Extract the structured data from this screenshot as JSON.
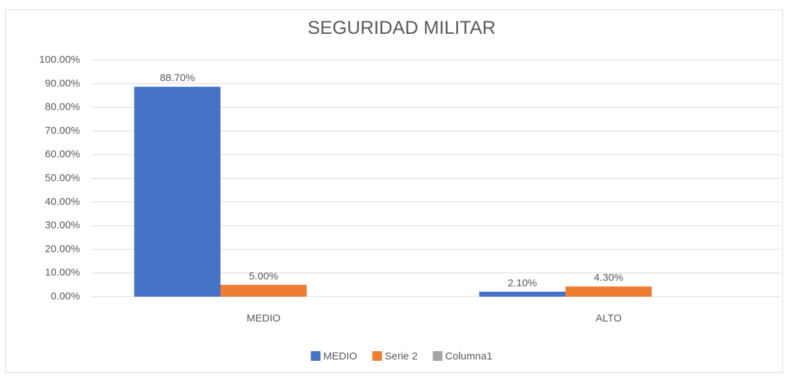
{
  "chart_data": {
    "type": "bar",
    "title": "SEGURIDAD MILITAR",
    "categories": [
      "MEDIO",
      "ALTO"
    ],
    "series": [
      {
        "name": "MEDIO",
        "color": "#4472c4",
        "values": [
          88.7,
          2.1
        ],
        "value_labels": [
          "88.70%",
          "2.10%"
        ]
      },
      {
        "name": "Serie 2",
        "color": "#ed7d31",
        "values": [
          5.0,
          4.3
        ],
        "value_labels": [
          "5.00%",
          "4.30%"
        ]
      },
      {
        "name": "Columna1",
        "color": "#a5a5a5",
        "values": [
          null,
          null
        ]
      }
    ],
    "ylim": [
      0,
      100
    ],
    "yticks": [
      {
        "value": 0,
        "label": "0.00%"
      },
      {
        "value": 10,
        "label": "10.00%"
      },
      {
        "value": 20,
        "label": "20.00%"
      },
      {
        "value": 30,
        "label": "30.00%"
      },
      {
        "value": 40,
        "label": "40.00%"
      },
      {
        "value": 50,
        "label": "50.00%"
      },
      {
        "value": 60,
        "label": "60.00%"
      },
      {
        "value": 70,
        "label": "70.00%"
      },
      {
        "value": 80,
        "label": "80.00%"
      },
      {
        "value": 90,
        "label": "90.00%"
      },
      {
        "value": 100,
        "label": "100.00%"
      }
    ],
    "grid": true,
    "legend": "bottom"
  }
}
